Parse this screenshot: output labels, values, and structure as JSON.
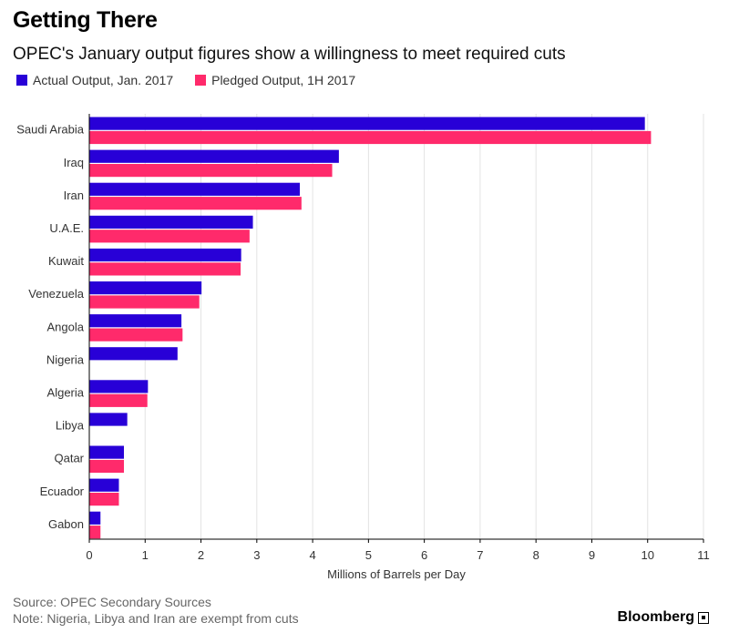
{
  "header": {
    "title": "Getting There",
    "subtitle": "OPEC's January output figures show a willingness to meet required cuts"
  },
  "legend": [
    {
      "label": "Actual Output, Jan. 2017",
      "color": "#2800d7"
    },
    {
      "label": "Pledged Output, 1H 2017",
      "color": "#ff2a6b"
    }
  ],
  "footer": {
    "source": "Source: OPEC Secondary Sources",
    "note": "Note: Nigeria, Libya and Iran are exempt from cuts",
    "brand": "Bloomberg"
  },
  "chart_data": {
    "type": "bar",
    "orientation": "horizontal",
    "categories": [
      "Saudi Arabia",
      "Iraq",
      "Iran",
      "U.A.E.",
      "Kuwait",
      "Venezuela",
      "Angola",
      "Nigeria",
      "Algeria",
      "Libya",
      "Qatar",
      "Ecuador",
      "Gabon"
    ],
    "series": [
      {
        "name": "Actual Output, Jan. 2017",
        "color": "#2800d7",
        "values": [
          9.95,
          4.47,
          3.77,
          2.93,
          2.72,
          2.01,
          1.65,
          1.58,
          1.05,
          0.68,
          0.62,
          0.53,
          0.2
        ]
      },
      {
        "name": "Pledged Output, 1H 2017",
        "color": "#ff2a6b",
        "values": [
          10.06,
          4.35,
          3.8,
          2.87,
          2.71,
          1.97,
          1.67,
          null,
          1.04,
          null,
          0.62,
          0.53,
          0.2
        ]
      }
    ],
    "xlabel": "Millions of Barrels per Day",
    "ylabel": "",
    "xlim": [
      0,
      11
    ],
    "xticks": [
      "0",
      "1",
      "2",
      "3",
      "4",
      "5",
      "6",
      "7",
      "8",
      "9",
      "10",
      "11"
    ],
    "grid": true,
    "legend_position": "top-left"
  }
}
